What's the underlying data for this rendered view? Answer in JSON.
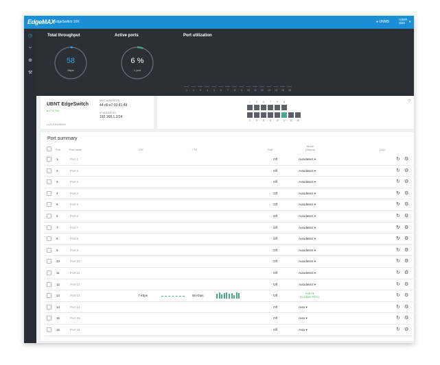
{
  "topbar": {
    "logo": "EdgeMAX",
    "device": "EdgeSwitch 10X",
    "unms": "● UNMS",
    "user_line1": "USER",
    "user_line2": "ubnt",
    "user_caret": "▾"
  },
  "sidebar": {
    "icons": [
      "dashboard-icon",
      "topology-icon",
      "globe-icon",
      "tools-icon"
    ]
  },
  "dashboard": {
    "throughput_title": "Total throughput",
    "throughput_value": "58",
    "throughput_unit": "Kbps",
    "throughput_fraction": 0.02,
    "active_title": "Active ports",
    "active_value": "6 %",
    "active_unit": "1 port",
    "active_fraction": 0.06,
    "utilization_title": "Port utilization",
    "utilization_ports": [
      "1",
      "2",
      "3",
      "4",
      "5",
      "6",
      "7",
      "8",
      "9",
      "10",
      "11",
      "12",
      "13",
      "14",
      "15",
      "16"
    ]
  },
  "info": {
    "name": "UBNT EdgeSwitch",
    "uptime": "● 17d 20h",
    "version": "v1.8.0.5106049",
    "mac_label": "MAC ADDRESS",
    "mac_value": "44:d9:e7:93:41:49",
    "ip_label": "IP ADDRESS",
    "ip_value": "192.168.1.2/24"
  },
  "panel": {
    "top_numbers": [
      "1",
      "3",
      "5",
      "7",
      "9",
      "11"
    ],
    "bottom_numbers": [
      "2",
      "4",
      "6",
      "8",
      "10",
      "12",
      "14",
      "16"
    ],
    "top_row_up": [],
    "bottom_row_up": [
      5
    ],
    "clock_icon": "◷"
  },
  "port_summary": {
    "title": "Port summary",
    "headers": {
      "port": "Port",
      "name": "Port name",
      "rx": "↓ RX",
      "tx": "↑ TX",
      "poe": "PoE",
      "mode1": "Mode",
      "mode2": "(Status)",
      "lag": "LAG"
    },
    "rows": [
      {
        "port": "1",
        "name": "Port 1",
        "rx": "",
        "tx": "",
        "poe": "Off",
        "mode": "Autodetect ▾"
      },
      {
        "port": "2",
        "name": "Port 2",
        "rx": "",
        "tx": "",
        "poe": "Off",
        "mode": "Autodetect ▾"
      },
      {
        "port": "3",
        "name": "Port 3",
        "rx": "",
        "tx": "",
        "poe": "Off",
        "mode": "Autodetect ▾"
      },
      {
        "port": "4",
        "name": "Port 4",
        "rx": "",
        "tx": "",
        "poe": "Off",
        "mode": "Autodetect ▾"
      },
      {
        "port": "5",
        "name": "Port 5",
        "rx": "",
        "tx": "",
        "poe": "Off",
        "mode": "Autodetect ▾"
      },
      {
        "port": "6",
        "name": "Port 6",
        "rx": "",
        "tx": "",
        "poe": "Off",
        "mode": "Autodetect ▾"
      },
      {
        "port": "7",
        "name": "Port 7",
        "rx": "",
        "tx": "",
        "poe": "Off",
        "mode": "Autodetect ▾"
      },
      {
        "port": "8",
        "name": "Port 8",
        "rx": "",
        "tx": "",
        "poe": "Off",
        "mode": "Autodetect ▾"
      },
      {
        "port": "9",
        "name": "Port 9",
        "rx": "",
        "tx": "",
        "poe": "Off",
        "mode": "Autodetect ▾"
      },
      {
        "port": "10",
        "name": "Port 10",
        "rx": "",
        "tx": "",
        "poe": "Off",
        "mode": "Autodetect ▾"
      },
      {
        "port": "11",
        "name": "Port 11",
        "rx": "",
        "tx": "",
        "poe": "Off",
        "mode": "Autodetect ▾"
      },
      {
        "port": "12",
        "name": "Port 12",
        "rx": "",
        "tx": "",
        "poe": "Off",
        "mode": "Autodetect ▾"
      },
      {
        "port": "13",
        "name": "Port 13",
        "rx": "7 Kbps",
        "tx": "58 Kbps",
        "poe": "Off",
        "mode": "Auto ▾",
        "status": "(1 Gbps FDX)"
      },
      {
        "port": "14",
        "name": "Port 14",
        "rx": "",
        "tx": "",
        "poe": "Off",
        "mode": "Auto ▾"
      },
      {
        "port": "15",
        "name": "Port 15",
        "rx": "",
        "tx": "",
        "poe": "Off",
        "mode": "Auto ▾"
      },
      {
        "port": "16",
        "name": "Port 16",
        "rx": "",
        "tx": "",
        "poe": "Off",
        "mode": "Auto ▾"
      }
    ],
    "row_actions": {
      "restart_icon": "↻",
      "settings_icon": "⚙"
    }
  },
  "colors": {
    "brand": "#1a8fd6",
    "gauge_accent": "#2ea8e6",
    "link_up": "#4aa88a",
    "status_green": "#5cb85c"
  }
}
